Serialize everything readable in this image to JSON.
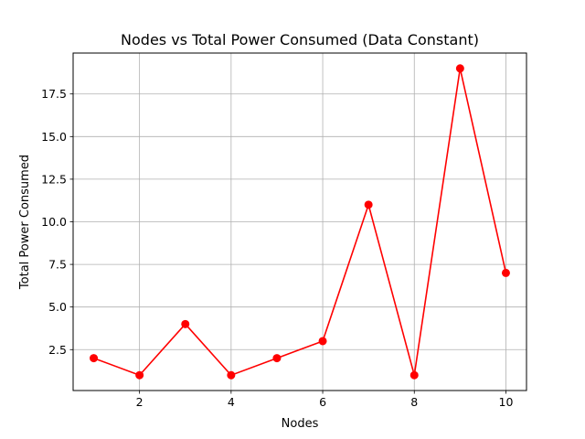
{
  "chart_data": {
    "type": "line",
    "title": "Nodes vs Total Power Consumed (Data Constant)",
    "xlabel": "Nodes",
    "ylabel": "Total Power Consumed",
    "x": [
      1,
      2,
      3,
      4,
      5,
      6,
      7,
      8,
      9,
      10
    ],
    "series": [
      {
        "values": [
          2,
          1,
          4,
          1,
          2,
          3,
          11,
          1,
          19,
          7
        ],
        "color": "#ff0000",
        "marker": "circle"
      }
    ],
    "xticks": [
      2,
      4,
      6,
      8,
      10
    ],
    "xtick_labels": [
      "2",
      "4",
      "6",
      "8",
      "10"
    ],
    "yticks": [
      2.5,
      5.0,
      7.5,
      10.0,
      12.5,
      15.0,
      17.5
    ],
    "ytick_labels": [
      "2.5",
      "5.0",
      "7.5",
      "10.0",
      "12.5",
      "15.0",
      "17.5"
    ],
    "xlim": [
      0.55,
      10.45
    ],
    "ylim": [
      0.1,
      19.9
    ],
    "grid": true
  }
}
